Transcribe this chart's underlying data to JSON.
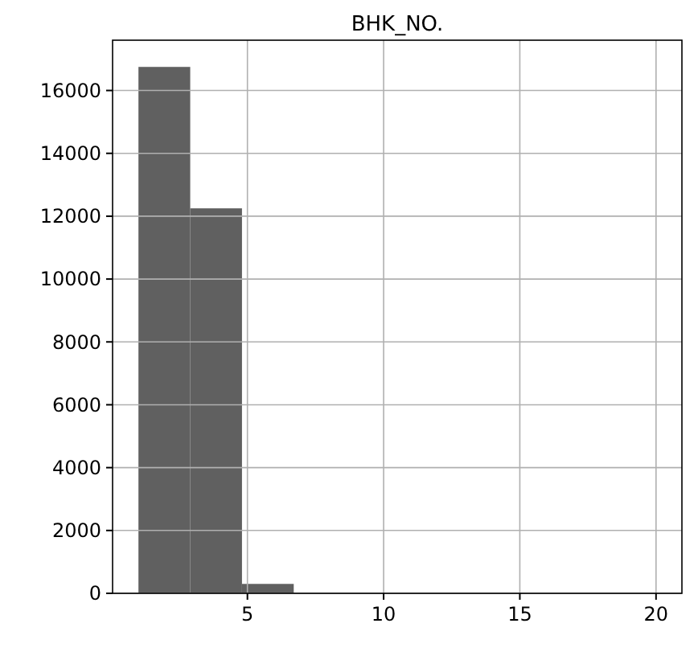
{
  "chart_data": {
    "type": "histogram",
    "title": "BHK_NO.",
    "bins": [
      1,
      2.9,
      4.8,
      6.7,
      8.6,
      10.5,
      12.4,
      14.3,
      16.2,
      18.1,
      20
    ],
    "values": [
      16750,
      12250,
      300,
      0,
      0,
      0,
      0,
      0,
      0,
      0
    ],
    "color": "#606060",
    "xlim": [
      0.05,
      20.95
    ],
    "xticks": [
      5,
      10,
      15,
      20
    ],
    "ylim": [
      0,
      17600
    ],
    "yticks": [
      0,
      2000,
      4000,
      6000,
      8000,
      10000,
      12000,
      14000,
      16000
    ],
    "grid": true
  }
}
